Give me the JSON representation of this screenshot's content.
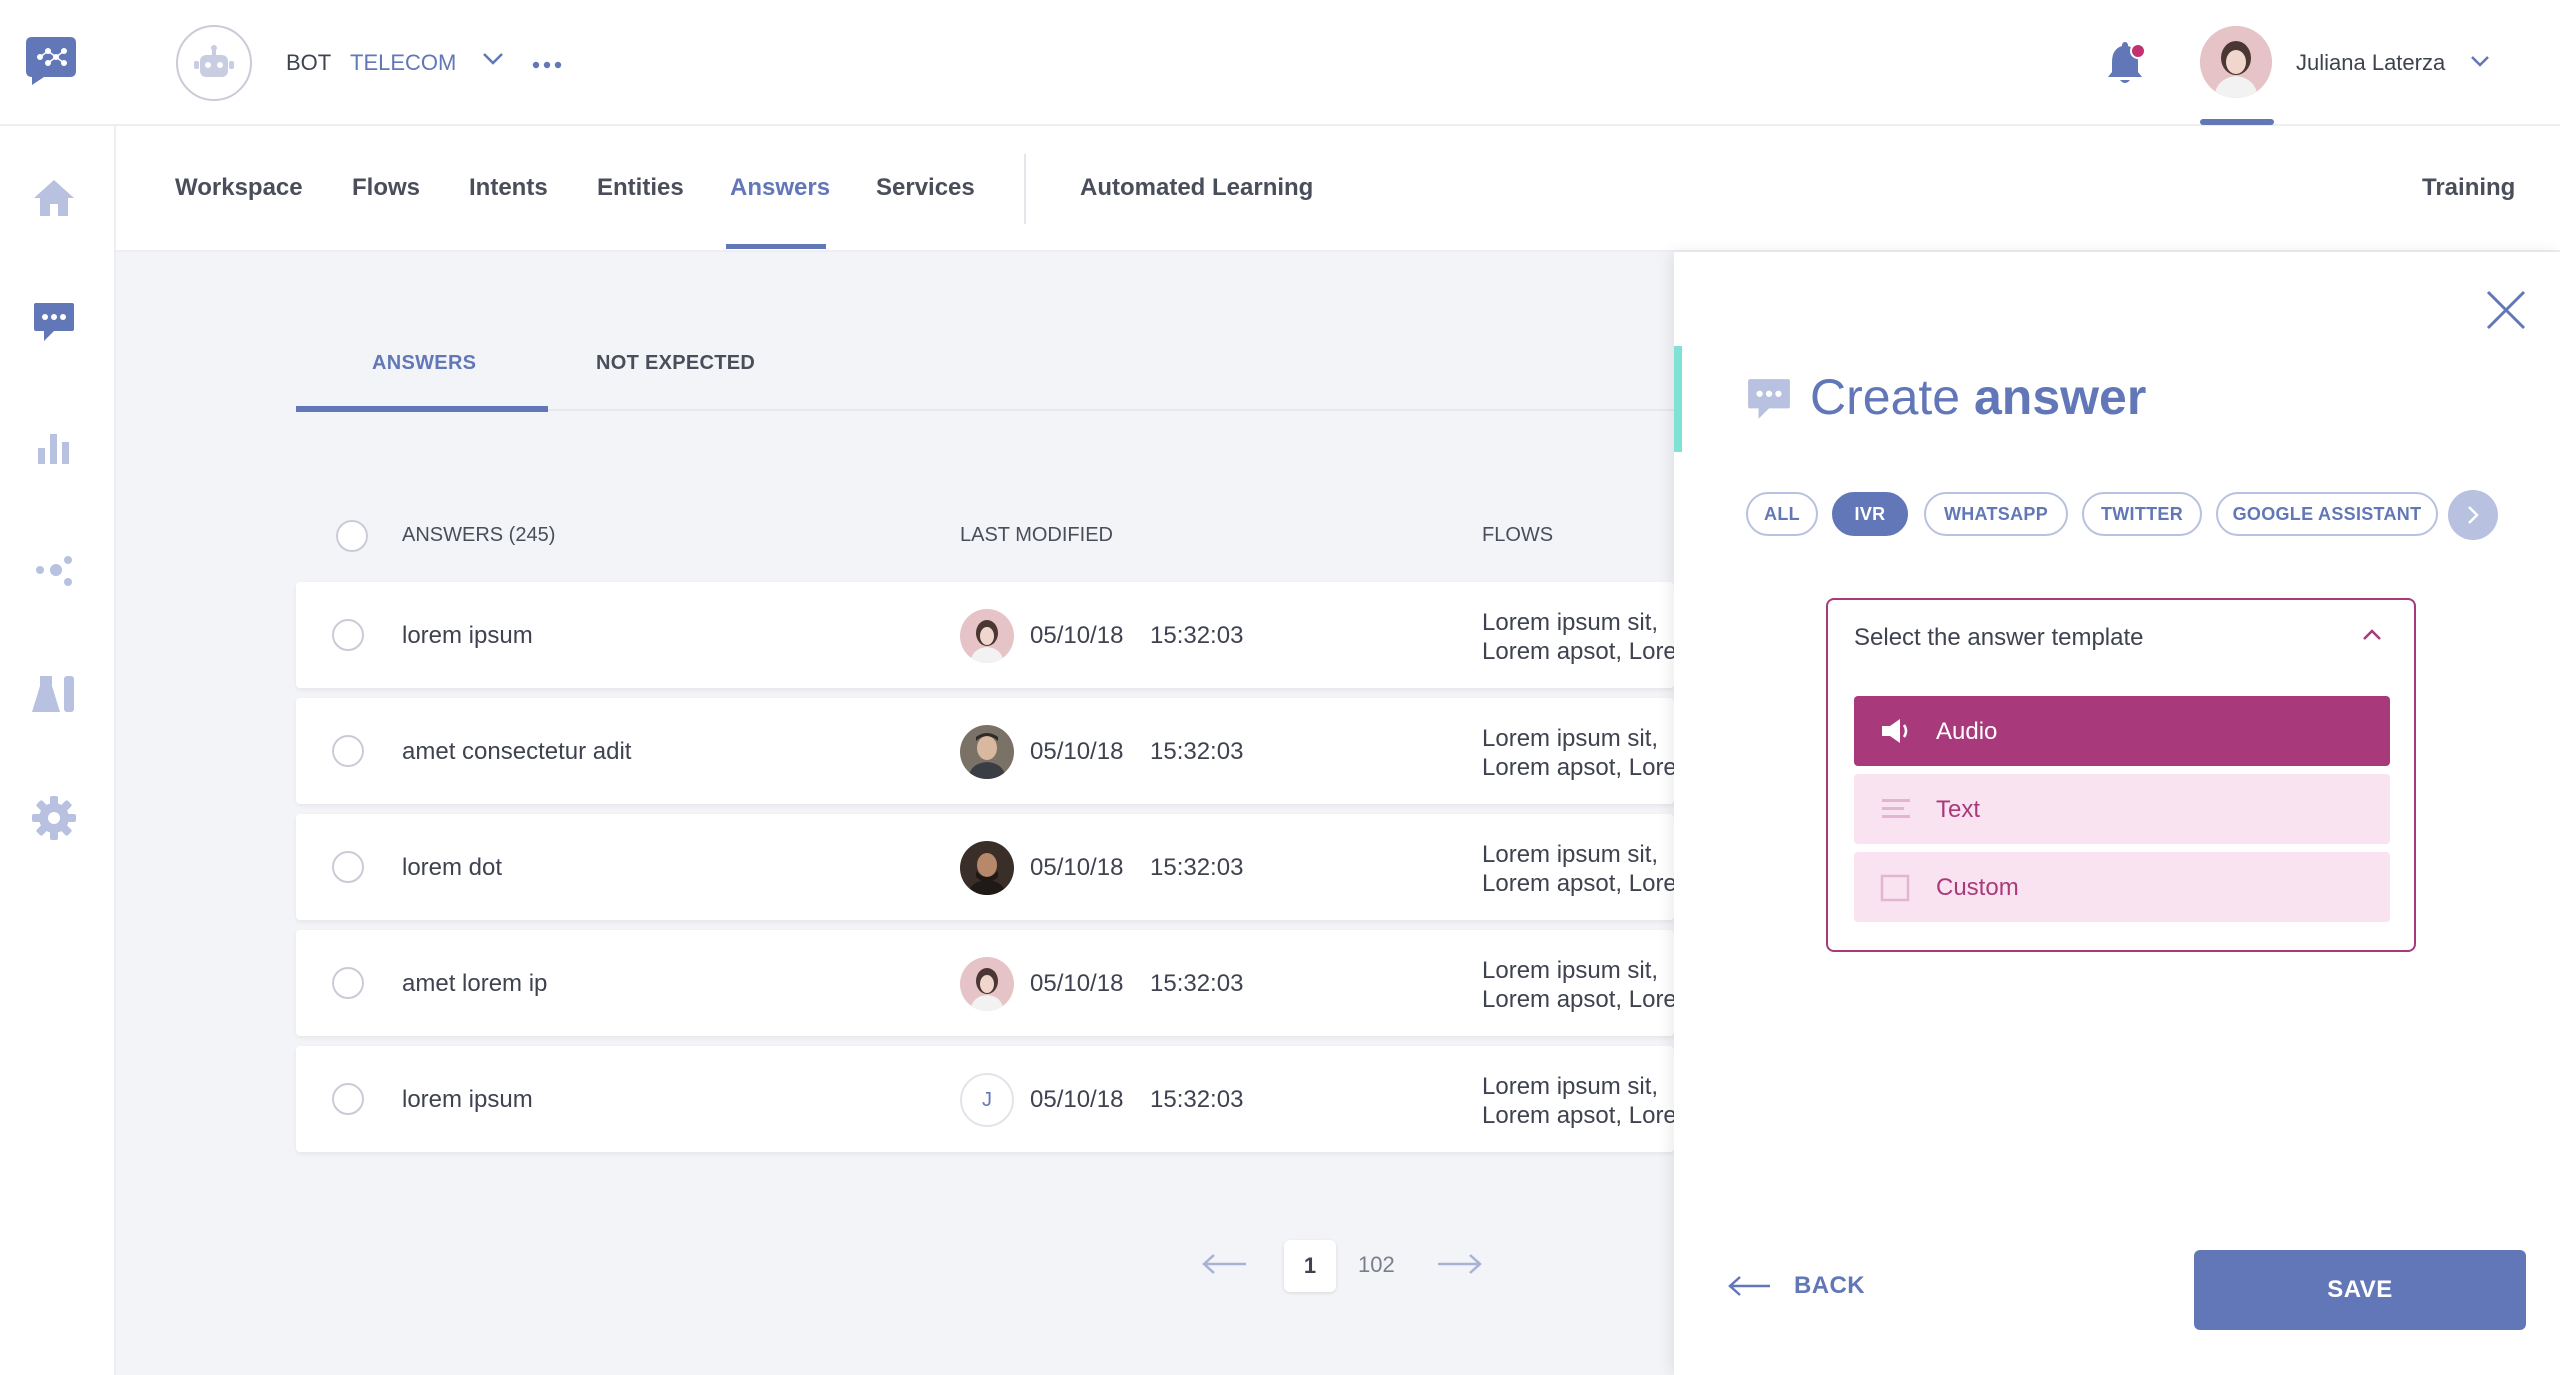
{
  "header": {
    "bot_label": "BOT",
    "bot_name": "TELECOM",
    "user_name": "Juliana Laterza"
  },
  "sidebar": {
    "items": [
      {
        "icon": "home-icon"
      },
      {
        "icon": "chat-icon"
      },
      {
        "icon": "bar-chart-icon"
      },
      {
        "icon": "share-nodes-icon"
      },
      {
        "icon": "lab-flask-icon"
      },
      {
        "icon": "gear-icon"
      }
    ]
  },
  "nav": {
    "tabs": [
      "Workspace",
      "Flows",
      "Intents",
      "Entities",
      "Answers",
      "Services"
    ],
    "active": "Answers",
    "secondary": "Automated Learning",
    "right": "Training"
  },
  "answers": {
    "tabs": [
      "ANSWERS",
      "NOT EXPECTED"
    ],
    "columns": {
      "answers": "ANSWERS (245)",
      "last_modified": "LAST MODIFIED",
      "flows": "FLOWS"
    },
    "rows": [
      {
        "name": "lorem ipsum",
        "date": "05/10/18",
        "time": "15:32:03",
        "flows_line1": "Lorem ipsum sit,",
        "flows_line2": "Lorem apsot, Lorem",
        "avatar": "photo"
      },
      {
        "name": "amet consectetur adit",
        "date": "05/10/18",
        "time": "15:32:03",
        "flows_line1": "Lorem ipsum sit,",
        "flows_line2": "Lorem apsot, Lorem",
        "avatar": "photo"
      },
      {
        "name": "lorem dot",
        "date": "05/10/18",
        "time": "15:32:03",
        "flows_line1": "Lorem ipsum sit,",
        "flows_line2": "Lorem apsot, Lorem",
        "avatar": "photo"
      },
      {
        "name": "amet lorem ip",
        "date": "05/10/18",
        "time": "15:32:03",
        "flows_line1": "Lorem ipsum sit,",
        "flows_line2": "Lorem apsot, Lorem",
        "avatar": "photo"
      },
      {
        "name": "lorem ipsum",
        "date": "05/10/18",
        "time": "15:32:03",
        "flows_line1": "Lorem ipsum sit,",
        "flows_line2": "Lorem apsot, Lorem",
        "avatar": "J"
      }
    ],
    "pagination": {
      "current": "1",
      "total": "102"
    }
  },
  "panel": {
    "title_light": "Create",
    "title_bold": "answer",
    "channels": [
      "ALL",
      "IVR",
      "WHATSAPP",
      "TWITTER",
      "GOOGLE ASSISTANT"
    ],
    "active_channel": "IVR",
    "template_label": "Select the answer template",
    "options": [
      {
        "label": "Audio",
        "icon": "speaker-icon"
      },
      {
        "label": "Text",
        "icon": "text-lines-icon"
      },
      {
        "label": "Custom",
        "icon": "square-icon"
      }
    ],
    "back_label": "BACK",
    "save_label": "SAVE"
  },
  "colors": {
    "primary": "#6277b8",
    "magenta": "#a83a7c",
    "magenta_light": "#f9e3f0",
    "accent_teal": "#7fe2d5",
    "notification": "#c2326f"
  }
}
